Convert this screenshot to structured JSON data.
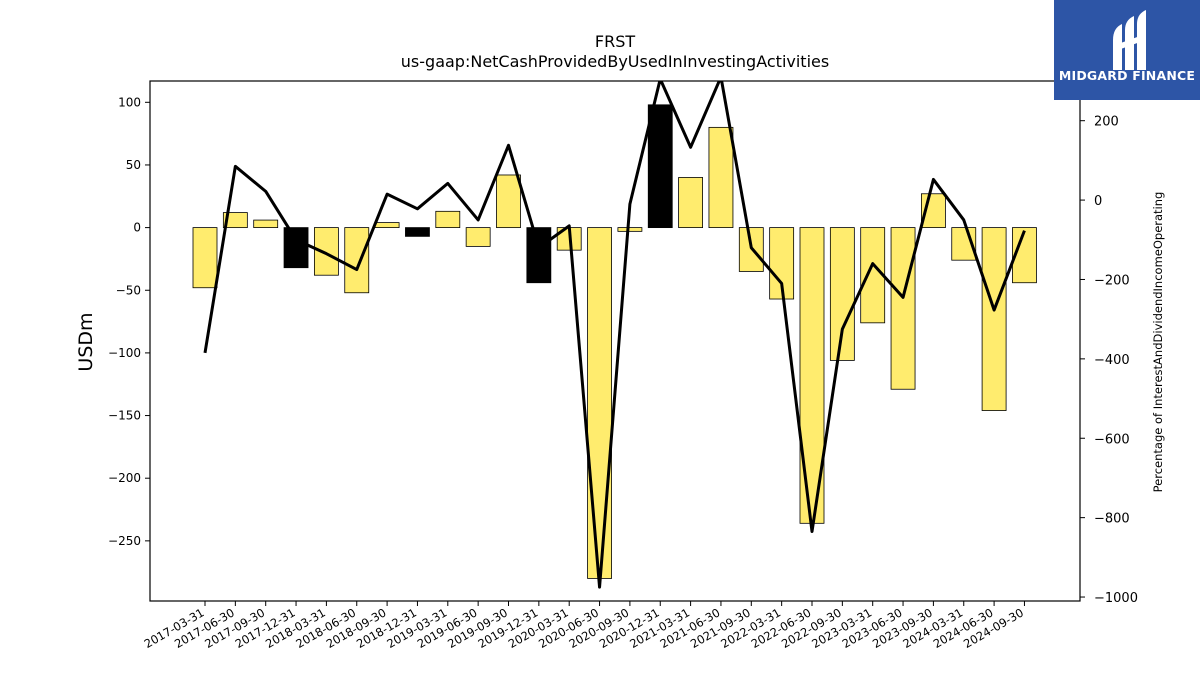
{
  "chart_data": {
    "type": "bar",
    "title": "FRST",
    "subtitle": "us-gaap:NetCashProvidedByUsedInInvestingActivities",
    "ylabel": "USDm",
    "y2label": "Percentage of InterestAndDividendIncomeOperating",
    "categories": [
      "2017-03-31",
      "2017-06-30",
      "2017-09-30",
      "2017-12-31",
      "2018-03-31",
      "2018-06-30",
      "2018-09-30",
      "2018-12-31",
      "2019-03-31",
      "2019-06-30",
      "2019-09-30",
      "2019-12-31",
      "2020-03-31",
      "2020-06-30",
      "2020-09-30",
      "2020-12-31",
      "2021-03-31",
      "2021-06-30",
      "2021-09-30",
      "2022-03-31",
      "2022-06-30",
      "2022-09-30",
      "2023-03-31",
      "2023-06-30",
      "2023-09-30",
      "2024-03-31",
      "2024-06-30",
      "2024-09-30"
    ],
    "series": [
      {
        "axis": "left",
        "kind": "bar",
        "values": [
          -48,
          12,
          6,
          -32,
          -38,
          -52,
          4,
          -7,
          13,
          -15,
          42,
          -44,
          -18,
          -280,
          -3,
          98,
          40,
          80,
          -35,
          -57,
          -236,
          -106,
          -76,
          -129,
          27,
          -26,
          -146,
          -44
        ],
        "colors": [
          "#ffec6e",
          "#ffec6e",
          "#ffec6e",
          "#000000",
          "#ffec6e",
          "#ffec6e",
          "#ffec6e",
          "#000000",
          "#ffec6e",
          "#ffec6e",
          "#ffec6e",
          "#000000",
          "#ffec6e",
          "#ffec6e",
          "#ffec6e",
          "#000000",
          "#ffec6e",
          "#ffec6e",
          "#ffec6e",
          "#ffec6e",
          "#ffec6e",
          "#ffec6e",
          "#ffec6e",
          "#ffec6e",
          "#ffec6e",
          "#ffec6e",
          "#ffec6e",
          "#ffec6e"
        ]
      },
      {
        "axis": "right",
        "kind": "line",
        "color": "#000000",
        "values": [
          -385,
          85,
          22,
          -100,
          -135,
          -175,
          15,
          -22,
          42,
          -50,
          138,
          -120,
          -65,
          -975,
          -10,
          305,
          133,
          310,
          -120,
          -210,
          -835,
          -325,
          -160,
          -245,
          52,
          -50,
          -277,
          -77
        ]
      }
    ],
    "ylim": [
      -298,
      117
    ],
    "yticks": [
      100,
      50,
      0,
      -50,
      -100,
      -150,
      -200,
      -250
    ],
    "y2lim": [
      -1010,
      300
    ],
    "y2ticks": [
      200,
      0,
      -200,
      -400,
      -600,
      -800,
      -1000
    ],
    "grid": false,
    "logo_text": "MIDGARD FINANCE"
  }
}
